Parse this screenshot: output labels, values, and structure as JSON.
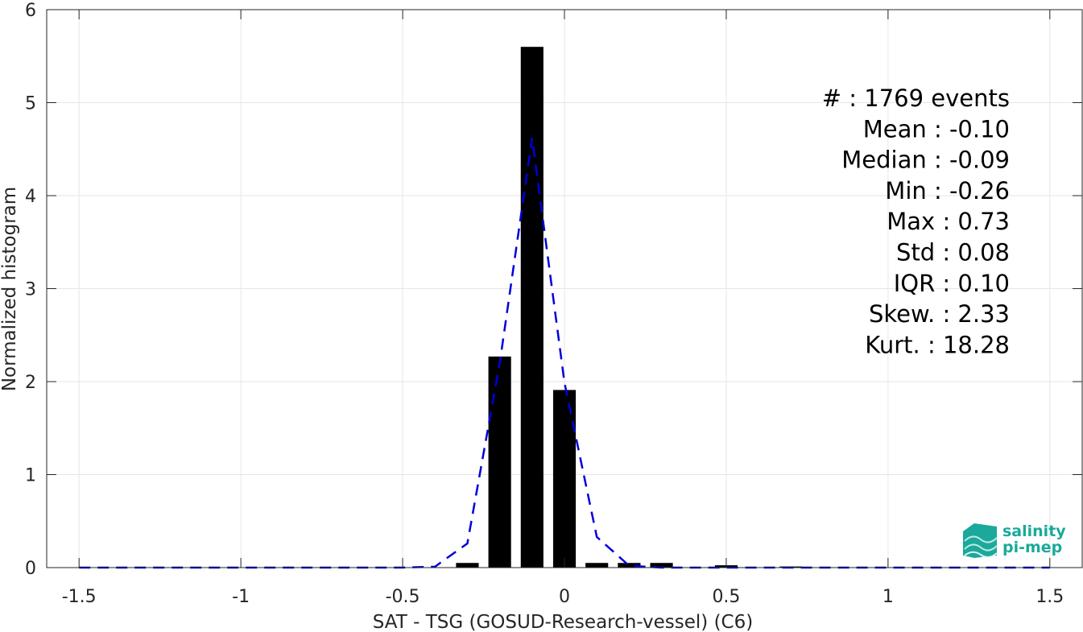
{
  "chart_data": {
    "type": "bar",
    "xlabel": "SAT - TSG (GOSUD-Research-vessel) (C6)",
    "ylabel": "Normalized histogram",
    "xlim": [
      -1.6,
      1.6
    ],
    "ylim": [
      0,
      6
    ],
    "xticks": [
      -1.5,
      -1,
      -0.5,
      0,
      0.5,
      1,
      1.5
    ],
    "xtick_labels": [
      "-1.5",
      "-1",
      "-0.5",
      "0",
      "0.5",
      "1",
      "1.5"
    ],
    "yticks": [
      0,
      1,
      2,
      3,
      4,
      5,
      6
    ],
    "ytick_labels": [
      "0",
      "1",
      "2",
      "3",
      "4",
      "5",
      "6"
    ],
    "grid": true,
    "bar_width": 0.07,
    "bar_color": "#000000",
    "bars": {
      "x": [
        -0.3,
        -0.2,
        -0.1,
        0.0,
        0.1,
        0.2,
        0.3,
        0.5,
        0.7
      ],
      "values": [
        0.05,
        2.27,
        5.6,
        1.91,
        0.05,
        0.05,
        0.05,
        0.025,
        0.012
      ]
    },
    "fit_line": {
      "style": "dashed",
      "color": "#0000dd",
      "x": [
        -1.5,
        -1.4,
        -1.3,
        -1.2,
        -1.1,
        -1.0,
        -0.9,
        -0.8,
        -0.7,
        -0.6,
        -0.5,
        -0.4,
        -0.3,
        -0.2,
        -0.1,
        0.0,
        0.1,
        0.2,
        0.3,
        0.4,
        0.5,
        0.6,
        0.7,
        0.8,
        0.9,
        1.0,
        1.1,
        1.2,
        1.3,
        1.4,
        1.5
      ],
      "y": [
        0,
        0,
        0,
        0,
        0,
        0,
        0,
        0,
        0,
        0,
        0,
        0.01,
        0.26,
        2.2,
        4.62,
        1.99,
        0.33,
        0.02,
        0,
        0,
        0,
        0,
        0,
        0,
        0,
        0,
        0,
        0,
        0,
        0,
        0
      ]
    },
    "stats": [
      "#  : 1769 events",
      "Mean : -0.10",
      "Median : -0.09",
      "Min : -0.26",
      "Max : 0.73",
      "Std : 0.08",
      "IQR : 0.10",
      "Skew. : 2.33",
      "Kurt. : 18.28"
    ]
  },
  "logo": {
    "line1": "salinity",
    "line2": "pi-mep",
    "color": "#1aa99a"
  }
}
